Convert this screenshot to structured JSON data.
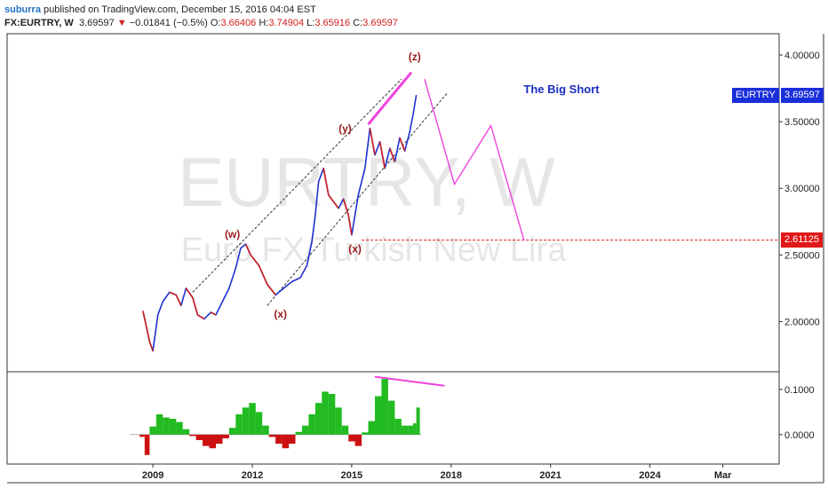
{
  "header": {
    "author": "suburra",
    "published_text": "published on TradingView.com, December 15, 2016 04:04 EST"
  },
  "quote": {
    "symbol": "FX:EURTRY, W",
    "last": "3.69597",
    "change_arrow": "▼",
    "change": "−0.01841 (−0.5%)",
    "open_label": "O:",
    "open": "3.66406",
    "high_label": "H:",
    "high": "3.74904",
    "low_label": "L:",
    "low": "3.65916",
    "close_label": "C:",
    "close": "3.69597"
  },
  "colors": {
    "up": "#2030d0",
    "down": "#d02020",
    "projection": "#ee44dd",
    "badge_symbol": "#1a2fd9",
    "badge_level": "#e01818",
    "osc_pos": "#22bb22",
    "osc_neg": "#cc1111",
    "wave_label": "#9b1b1b",
    "title_blue": "#1a2fbf"
  },
  "chart_data": {
    "type": "line",
    "title": "The Big Short",
    "watermark_symbol": "EURTRY, W",
    "watermark_name": "Euro FX/Turkish New Lira",
    "price_axis": {
      "ticks": [
        "4.00000",
        "3.50000",
        "3.00000",
        "2.50000",
        "2.00000"
      ],
      "values": [
        4.0,
        3.5,
        3.0,
        2.5,
        2.0
      ],
      "ylim": [
        1.63,
        4.16
      ]
    },
    "osc_axis": {
      "ticks": [
        "0.1000",
        "0.0000"
      ],
      "values": [
        0.1,
        0.0
      ],
      "ylim": [
        -0.065,
        0.137
      ]
    },
    "x_axis": {
      "ticks": [
        "2009",
        "2012",
        "2015",
        "2018",
        "2021",
        "2024",
        "Mar"
      ],
      "values": [
        2009,
        2012,
        2015,
        2018,
        2021,
        2024,
        2026.2
      ],
      "xlim": [
        2004.6,
        2027.9
      ]
    },
    "price_series": {
      "name": "EURTRY",
      "x": [
        2008.7,
        2008.9,
        2009.0,
        2009.15,
        2009.3,
        2009.5,
        2009.7,
        2009.85,
        2010.0,
        2010.2,
        2010.35,
        2010.55,
        2010.75,
        2010.9,
        2011.1,
        2011.3,
        2011.5,
        2011.65,
        2011.8,
        2011.95,
        2012.2,
        2012.45,
        2012.7,
        2012.95,
        2013.2,
        2013.45,
        2013.65,
        2013.8,
        2013.9,
        2014.0,
        2014.15,
        2014.3,
        2014.45,
        2014.6,
        2014.75,
        2014.9,
        2015.0,
        2015.2,
        2015.4,
        2015.55,
        2015.7,
        2015.85,
        2016.0,
        2016.15,
        2016.3,
        2016.45,
        2016.6,
        2016.75,
        2016.85,
        2016.95
      ],
      "y": [
        2.08,
        1.85,
        1.78,
        2.05,
        2.15,
        2.22,
        2.2,
        2.12,
        2.25,
        2.18,
        2.05,
        2.02,
        2.07,
        2.05,
        2.15,
        2.25,
        2.4,
        2.55,
        2.58,
        2.5,
        2.42,
        2.28,
        2.2,
        2.25,
        2.3,
        2.33,
        2.42,
        2.6,
        2.8,
        3.05,
        3.15,
        2.95,
        2.9,
        2.85,
        2.92,
        2.8,
        2.65,
        2.95,
        3.15,
        3.45,
        3.25,
        3.35,
        3.15,
        3.3,
        3.2,
        3.38,
        3.28,
        3.42,
        3.55,
        3.7
      ]
    },
    "oscillator_series": {
      "name": "",
      "x": [
        2008.6,
        2008.75,
        2008.9,
        2009.1,
        2009.3,
        2009.5,
        2009.7,
        2009.9,
        2010.1,
        2010.3,
        2010.5,
        2010.7,
        2010.9,
        2011.1,
        2011.3,
        2011.5,
        2011.7,
        2011.9,
        2012.1,
        2012.3,
        2012.5,
        2012.7,
        2012.9,
        2013.1,
        2013.3,
        2013.5,
        2013.7,
        2013.9,
        2014.1,
        2014.3,
        2014.5,
        2014.7,
        2014.9,
        2015.1,
        2015.3,
        2015.5,
        2015.7,
        2015.9,
        2016.1,
        2016.3,
        2016.5,
        2016.7,
        2016.85,
        2016.95
      ],
      "y": [
        -0.005,
        -0.045,
        0.018,
        0.045,
        0.038,
        0.035,
        0.028,
        0.012,
        -0.003,
        -0.012,
        -0.025,
        -0.03,
        -0.02,
        -0.008,
        0.015,
        0.045,
        0.06,
        0.07,
        0.05,
        0.02,
        -0.005,
        -0.02,
        -0.03,
        -0.02,
        0.006,
        0.02,
        0.045,
        0.07,
        0.095,
        0.09,
        0.06,
        0.02,
        -0.015,
        -0.025,
        0.005,
        0.03,
        0.085,
        0.123,
        0.075,
        0.035,
        0.02,
        0.02,
        0.025,
        0.06
      ]
    },
    "projection": {
      "name": "",
      "x": [
        2017.2,
        2018.1,
        2019.2,
        2020.2
      ],
      "y": [
        3.82,
        3.03,
        3.47,
        2.61
      ]
    },
    "divergence_price": {
      "x": [
        2015.5,
        2016.8
      ],
      "y": [
        3.48,
        3.87
      ]
    },
    "divergence_osc": {
      "x": [
        2015.7,
        2017.8
      ],
      "y": [
        0.128,
        0.108
      ]
    },
    "channel_upper": {
      "x": [
        2010.2,
        2016.5
      ],
      "y": [
        2.22,
        3.82
      ]
    },
    "channel_lower": {
      "x": [
        2012.45,
        2017.9
      ],
      "y": [
        2.12,
        3.72
      ]
    },
    "level_line": {
      "value": 2.61125,
      "label": "2.61125",
      "x_start": 2015.3
    },
    "last_price": {
      "value": 3.69597,
      "label": "3.69597",
      "symbol": "EURTRY"
    },
    "wave_labels": [
      {
        "text": "(w)",
        "x": 2011.4,
        "y": 2.63
      },
      {
        "text": "(x)",
        "x": 2012.85,
        "y": 2.03
      },
      {
        "text": "(y)",
        "x": 2014.8,
        "y": 3.42
      },
      {
        "text": "(x)",
        "x": 2015.1,
        "y": 2.52
      },
      {
        "text": "(z)",
        "x": 2016.9,
        "y": 3.96
      }
    ],
    "grid": false,
    "legend": "none"
  }
}
